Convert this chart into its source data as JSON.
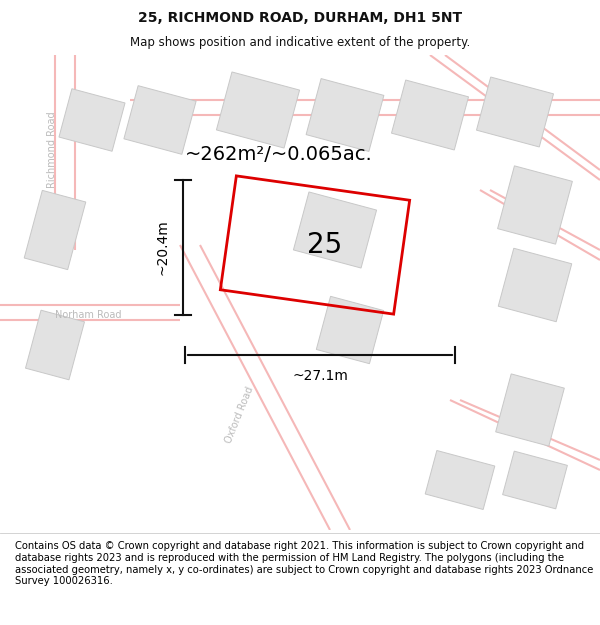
{
  "title": "25, RICHMOND ROAD, DURHAM, DH1 5NT",
  "subtitle": "Map shows position and indicative extent of the property.",
  "footer": "Contains OS data © Crown copyright and database right 2021. This information is subject to Crown copyright and database rights 2023 and is reproduced with the permission of HM Land Registry. The polygons (including the associated geometry, namely x, y co-ordinates) are subject to Crown copyright and database rights 2023 Ordnance Survey 100026316.",
  "area_label": "~262m²/~0.065ac.",
  "width_label": "~27.1m",
  "height_label": "~20.4m",
  "plot_number": "25",
  "map_bg": "#f2f2f2",
  "building_color": "#e2e2e2",
  "building_outline": "#c8c8c8",
  "pink_line_color": "#f5b8b8",
  "red_plot_color": "#dd0000",
  "title_fontsize": 10,
  "subtitle_fontsize": 8.5,
  "footer_fontsize": 7.2,
  "area_fontsize": 14,
  "plot_label_fontsize": 20,
  "dim_fontsize": 10,
  "road_label_fontsize": 7,
  "road_label_color": "#bbbbbb",
  "dim_color": "#111111",
  "title_color": "#111111"
}
